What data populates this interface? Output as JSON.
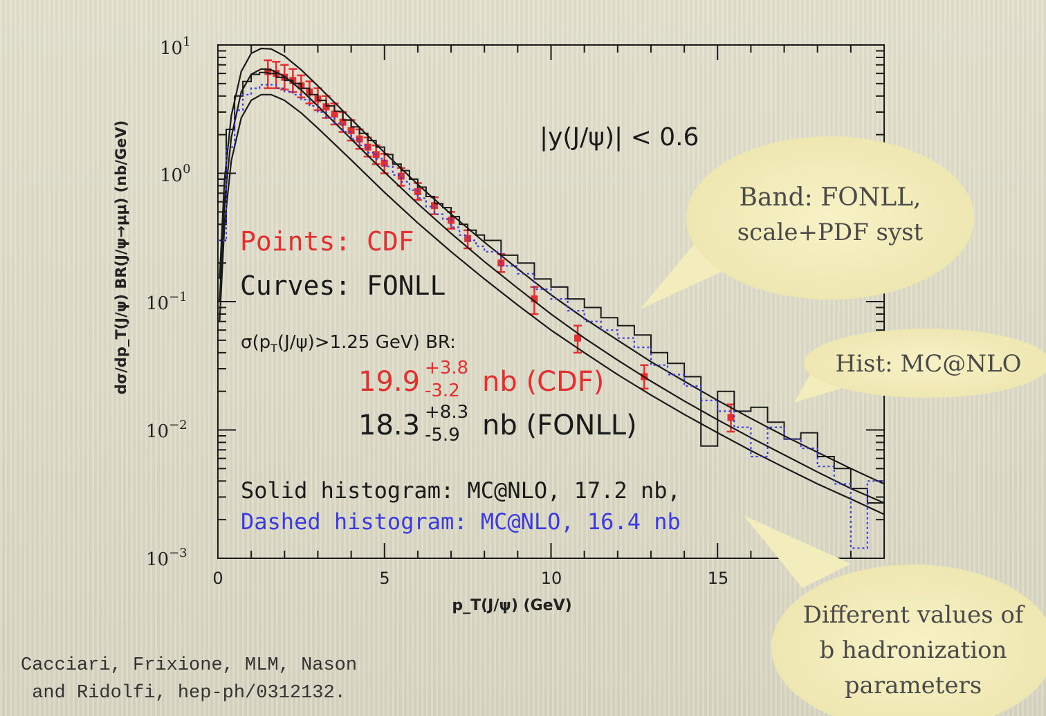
{
  "chart_data": {
    "type": "line",
    "xlabel": "p_T(J/ψ) (GeV)",
    "ylabel": "dσ/dp_T(J/ψ) BR(J/ψ→μμ) (nb/GeV)",
    "xlim": [
      0,
      20
    ],
    "ylim": [
      0.001,
      10
    ],
    "yscale": "log",
    "x_ticks": [
      "0",
      "5",
      "10",
      "15"
    ],
    "y_ticks": [
      "10^1",
      "10^0",
      "10^-1",
      "10^-2",
      "10^-3"
    ],
    "series": [
      {
        "name": "CDF",
        "kind": "points",
        "color": "#e23030",
        "points": [
          {
            "x": 1.5,
            "y": 6.2,
            "lo": 4.6,
            "hi": 7.6
          },
          {
            "x": 1.75,
            "y": 6.0,
            "lo": 4.6,
            "hi": 7.4
          },
          {
            "x": 2.0,
            "y": 5.6,
            "lo": 4.5,
            "hi": 7.0
          },
          {
            "x": 2.25,
            "y": 5.3,
            "lo": 4.3,
            "hi": 6.5
          },
          {
            "x": 2.5,
            "y": 4.8,
            "lo": 3.9,
            "hi": 5.8
          },
          {
            "x": 2.75,
            "y": 4.3,
            "lo": 3.5,
            "hi": 5.2
          },
          {
            "x": 3.0,
            "y": 3.8,
            "lo": 3.1,
            "hi": 4.6
          },
          {
            "x": 3.25,
            "y": 3.3,
            "lo": 2.7,
            "hi": 4.0
          },
          {
            "x": 3.5,
            "y": 2.9,
            "lo": 2.4,
            "hi": 3.5
          },
          {
            "x": 3.75,
            "y": 2.5,
            "lo": 2.1,
            "hi": 3.0
          },
          {
            "x": 4.0,
            "y": 2.15,
            "lo": 1.8,
            "hi": 2.6
          },
          {
            "x": 4.25,
            "y": 1.85,
            "lo": 1.55,
            "hi": 2.2
          },
          {
            "x": 4.5,
            "y": 1.6,
            "lo": 1.35,
            "hi": 1.9
          },
          {
            "x": 4.75,
            "y": 1.4,
            "lo": 1.18,
            "hi": 1.65
          },
          {
            "x": 5.0,
            "y": 1.2,
            "lo": 1.0,
            "hi": 1.42
          },
          {
            "x": 5.5,
            "y": 0.95,
            "lo": 0.8,
            "hi": 1.1
          },
          {
            "x": 6.0,
            "y": 0.72,
            "lo": 0.62,
            "hi": 0.84
          },
          {
            "x": 6.5,
            "y": 0.56,
            "lo": 0.48,
            "hi": 0.65
          },
          {
            "x": 7.0,
            "y": 0.43,
            "lo": 0.37,
            "hi": 0.5
          },
          {
            "x": 7.5,
            "y": 0.31,
            "lo": 0.26,
            "hi": 0.36
          },
          {
            "x": 8.5,
            "y": 0.2,
            "lo": 0.17,
            "hi": 0.235
          },
          {
            "x": 9.5,
            "y": 0.105,
            "lo": 0.08,
            "hi": 0.13
          },
          {
            "x": 10.8,
            "y": 0.052,
            "lo": 0.04,
            "hi": 0.065
          },
          {
            "x": 12.8,
            "y": 0.026,
            "lo": 0.021,
            "hi": 0.032
          },
          {
            "x": 15.4,
            "y": 0.0125,
            "lo": 0.0097,
            "hi": 0.0158
          }
        ]
      },
      {
        "name": "FONLL upper",
        "kind": "curve",
        "color": "#1a1a1a",
        "x": [
          0.05,
          0.2,
          0.4,
          0.7,
          1.0,
          1.3,
          1.6,
          2.0,
          2.5,
          3.0,
          4.0,
          5.0,
          6.0,
          7.0,
          8.0,
          9.0,
          10.0,
          11.0,
          12.0,
          13.0,
          14.0,
          15.0,
          16.0,
          17.0,
          18.0,
          19.0,
          20.0
        ],
        "y": [
          0.15,
          0.9,
          2.8,
          6.2,
          8.6,
          9.4,
          9.3,
          8.2,
          6.4,
          4.8,
          2.65,
          1.45,
          0.82,
          0.48,
          0.29,
          0.18,
          0.113,
          0.074,
          0.05,
          0.034,
          0.024,
          0.017,
          0.0123,
          0.009,
          0.0067,
          0.005,
          0.0038
        ]
      },
      {
        "name": "FONLL central",
        "kind": "curve",
        "color": "#1a1a1a",
        "x": [
          0.05,
          0.2,
          0.4,
          0.7,
          1.0,
          1.3,
          1.6,
          2.0,
          2.5,
          3.0,
          4.0,
          5.0,
          6.0,
          7.0,
          8.0,
          9.0,
          10.0,
          11.0,
          12.0,
          13.0,
          14.0,
          15.0,
          16.0,
          17.0,
          18.0,
          19.0,
          20.0
        ],
        "y": [
          0.1,
          0.6,
          1.9,
          4.3,
          5.9,
          6.5,
          6.4,
          5.7,
          4.45,
          3.35,
          1.85,
          1.02,
          0.58,
          0.34,
          0.205,
          0.127,
          0.08,
          0.052,
          0.035,
          0.024,
          0.0168,
          0.012,
          0.0087,
          0.0064,
          0.0047,
          0.0035,
          0.0027
        ]
      },
      {
        "name": "FONLL lower",
        "kind": "curve",
        "color": "#1a1a1a",
        "x": [
          0.05,
          0.2,
          0.4,
          0.7,
          1.0,
          1.3,
          1.6,
          2.0,
          2.5,
          3.0,
          4.0,
          5.0,
          6.0,
          7.0,
          8.0,
          9.0,
          10.0,
          11.0,
          12.0,
          13.0,
          14.0,
          15.0,
          16.0,
          17.0,
          18.0,
          19.0,
          20.0
        ],
        "y": [
          0.07,
          0.4,
          1.25,
          2.7,
          3.7,
          4.1,
          4.1,
          3.7,
          2.95,
          2.25,
          1.27,
          0.71,
          0.41,
          0.245,
          0.15,
          0.094,
          0.06,
          0.04,
          0.027,
          0.0187,
          0.0132,
          0.0095,
          0.0069,
          0.0051,
          0.0038,
          0.0029,
          0.0022
        ]
      },
      {
        "name": "MC@NLO solid",
        "kind": "hist",
        "color": "#1a1a1a",
        "edges": [
          0,
          0.25,
          0.5,
          0.75,
          1.0,
          1.25,
          1.5,
          1.75,
          2.0,
          2.25,
          2.5,
          2.75,
          3.0,
          3.25,
          3.5,
          3.75,
          4.0,
          4.25,
          4.5,
          4.75,
          5.0,
          5.25,
          5.5,
          5.75,
          6.0,
          6.25,
          6.5,
          6.75,
          7.0,
          7.25,
          7.5,
          7.75,
          8.0,
          8.5,
          9.0,
          9.5,
          10.0,
          10.5,
          11.0,
          11.5,
          12.0,
          12.5,
          13.0,
          13.5,
          14.0,
          14.5,
          15.0,
          15.5,
          16.0,
          16.5,
          17.0,
          17.5,
          18.0,
          18.5,
          19.0,
          19.5,
          20.0
        ],
        "values": [
          0.4,
          2.2,
          4.0,
          5.2,
          5.9,
          6.1,
          6.0,
          5.6,
          5.3,
          5.0,
          4.6,
          4.1,
          3.7,
          3.35,
          3.05,
          2.6,
          2.3,
          2.05,
          1.8,
          1.6,
          1.4,
          1.18,
          1.05,
          0.9,
          0.78,
          0.66,
          0.58,
          0.54,
          0.46,
          0.4,
          0.36,
          0.33,
          0.3,
          0.23,
          0.2,
          0.15,
          0.13,
          0.105,
          0.09,
          0.075,
          0.065,
          0.055,
          0.04,
          0.033,
          0.026,
          0.0075,
          0.02,
          0.014,
          0.015,
          0.0115,
          0.0085,
          0.0095,
          0.0062,
          0.005,
          0.0035,
          0.0027
        ]
      },
      {
        "name": "MC@NLO dashed",
        "kind": "hist",
        "color": "#3a3ae0",
        "edges": [
          0,
          0.25,
          0.5,
          0.75,
          1.0,
          1.25,
          1.5,
          1.75,
          2.0,
          2.25,
          2.5,
          2.75,
          3.0,
          3.25,
          3.5,
          3.75,
          4.0,
          4.25,
          4.5,
          4.75,
          5.0,
          5.25,
          5.5,
          5.75,
          6.0,
          6.25,
          6.5,
          6.75,
          7.0,
          7.25,
          7.5,
          7.75,
          8.0,
          8.5,
          9.0,
          9.5,
          10.0,
          10.5,
          11.0,
          11.5,
          12.0,
          12.5,
          13.0,
          13.5,
          14.0,
          14.5,
          15.0,
          15.5,
          16.0,
          16.5,
          17.0,
          17.5,
          18.0,
          18.5,
          19.0,
          19.5,
          20.0
        ],
        "values": [
          0.3,
          1.6,
          3.1,
          4.1,
          4.6,
          4.9,
          4.9,
          4.6,
          4.35,
          4.1,
          3.75,
          3.35,
          3.0,
          2.7,
          2.45,
          2.1,
          1.85,
          1.65,
          1.45,
          1.3,
          1.13,
          0.97,
          0.86,
          0.74,
          0.64,
          0.55,
          0.48,
          0.44,
          0.38,
          0.33,
          0.3,
          0.27,
          0.245,
          0.19,
          0.165,
          0.125,
          0.105,
          0.085,
          0.07,
          0.06,
          0.052,
          0.044,
          0.032,
          0.027,
          0.022,
          0.017,
          0.014,
          0.0105,
          0.0062,
          0.0105,
          0.0085,
          0.0072,
          0.0052,
          0.0038,
          0.0012,
          0.004
        ]
      }
    ]
  },
  "labels": {
    "rapidity": "|y(J/ψ)| < 0.6",
    "points_label": "Points: CDF",
    "curves_label": "Curves: FONLL",
    "sigma_label": "σ(p",
    "sigma_sub": "T",
    "sigma_rest": "(J/ψ)>1.25 GeV) BR:",
    "cdf_value": "19.9",
    "cdf_sup": "+3.8",
    "cdf_sub": "-3.2",
    "cdf_unit": "nb (CDF)",
    "fonll_value": "18.3",
    "fonll_sup": "+8.3",
    "fonll_sub": "-5.9",
    "fonll_unit": "nb (FONLL)",
    "solid_hist": "Solid histogram: MC@NLO, 17.2 nb,",
    "dashed_hist": "Dashed histogram: MC@NLO, 16.4 nb"
  },
  "callouts": {
    "band_line1": "Band: FONLL,",
    "band_line2": "scale+PDF syst",
    "hist": "Hist: MC@NLO",
    "diff_line1": "Different values of",
    "diff_line2": "b hadronization",
    "diff_line3": "parameters"
  },
  "citation": {
    "line1": "Cacciari, Frixione, MLM, Nason",
    "line2": " and Ridolfi, hep-ph/0312132."
  },
  "colors": {
    "cdf_red": "#e23030",
    "dashed_blue": "#3a3ae0",
    "callout_fill": "#f3ecbc"
  }
}
